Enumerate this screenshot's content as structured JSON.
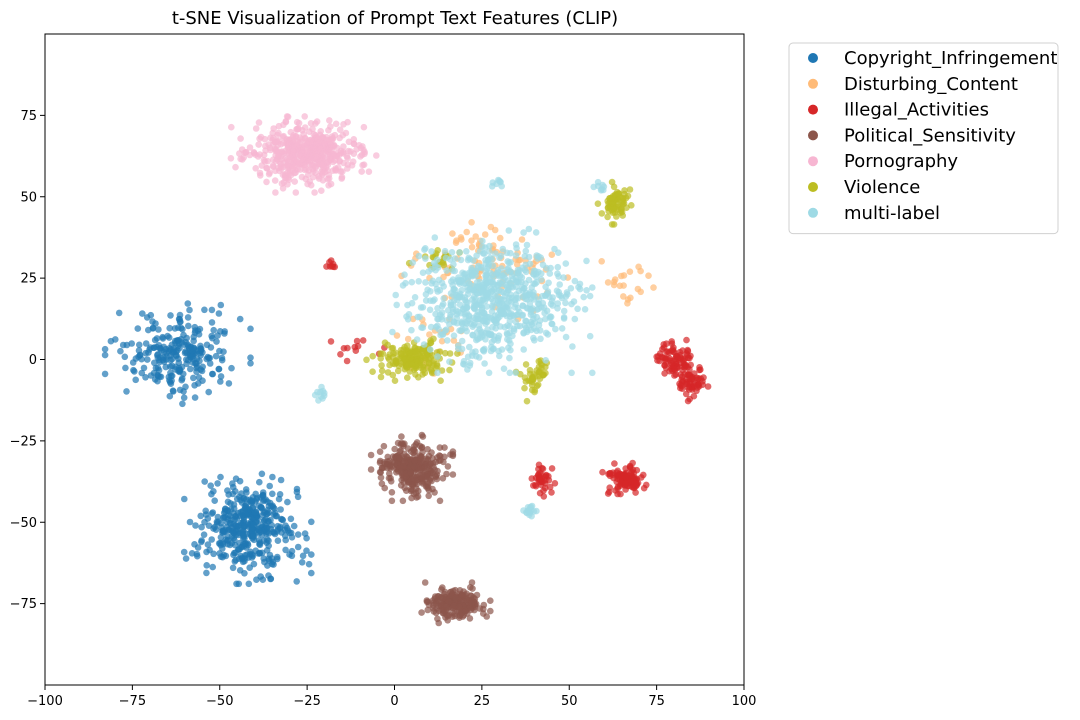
{
  "chart_data": {
    "type": "scatter",
    "title": "t-SNE Visualization of Prompt Text Features (CLIP)",
    "xlabel": "",
    "ylabel": "",
    "xlim": [
      -100,
      100
    ],
    "ylim": [
      -100,
      100
    ],
    "xticks": [
      -100,
      -75,
      -50,
      -25,
      0,
      25,
      50,
      75,
      100
    ],
    "yticks": [
      75,
      50,
      25,
      0,
      -25,
      -50,
      -75
    ],
    "xtick_labels": [
      "−100",
      "−75",
      "−50",
      "−25",
      "0",
      "25",
      "50",
      "75",
      "100"
    ],
    "ytick_labels": [
      "75",
      "50",
      "25",
      "0",
      "−25",
      "−50",
      "−75"
    ],
    "grid": false,
    "legend_position": "outside-upper-right",
    "series": [
      {
        "name": "Copyright_Infringement",
        "color": "#1f77b4",
        "clusters": [
          {
            "center": [
              -62,
              2
            ],
            "spread": [
              16,
              12
            ],
            "count": 260
          },
          {
            "center": [
              -42,
              -52
            ],
            "spread": [
              14,
              13
            ],
            "count": 420
          }
        ]
      },
      {
        "name": "Disturbing_Content",
        "color": "#ffbb78",
        "clusters": [
          {
            "center": [
              28,
              28
            ],
            "spread": [
              20,
              12
            ],
            "count": 90
          },
          {
            "center": [
              65,
              25
            ],
            "spread": [
              7,
              8
            ],
            "count": 20
          },
          {
            "center": [
              12,
              5
            ],
            "spread": [
              12,
              8
            ],
            "count": 25
          }
        ]
      },
      {
        "name": "Illegal_Activities",
        "color": "#d62728",
        "clusters": [
          {
            "center": [
              80,
              0
            ],
            "spread": [
              5,
              5
            ],
            "count": 80
          },
          {
            "center": [
              85,
              -7
            ],
            "spread": [
              4,
              5
            ],
            "count": 60
          },
          {
            "center": [
              66,
              -37
            ],
            "spread": [
              5,
              4
            ],
            "count": 110
          },
          {
            "center": [
              42,
              -37
            ],
            "spread": [
              3,
              4
            ],
            "count": 40
          },
          {
            "center": [
              -18,
              29
            ],
            "spread": [
              2,
              2
            ],
            "count": 8
          },
          {
            "center": [
              -12,
              3
            ],
            "spread": [
              7,
              4
            ],
            "count": 12
          }
        ]
      },
      {
        "name": "Political_Sensitivity",
        "color": "#8c564b",
        "clusters": [
          {
            "center": [
              5,
              -33
            ],
            "spread": [
              9,
              8
            ],
            "count": 300
          },
          {
            "center": [
              17,
              -75
            ],
            "spread": [
              8,
              5
            ],
            "count": 200
          }
        ]
      },
      {
        "name": "Pornography",
        "color": "#f7b6d2",
        "clusters": [
          {
            "center": [
              -26,
              63
            ],
            "spread": [
              16,
              9
            ],
            "count": 480
          }
        ]
      },
      {
        "name": "Violence",
        "color": "#bcbd22",
        "clusters": [
          {
            "center": [
              5,
              0
            ],
            "spread": [
              10,
              5
            ],
            "count": 170
          },
          {
            "center": [
              63,
              48
            ],
            "spread": [
              4,
              5
            ],
            "count": 70
          },
          {
            "center": [
              40,
              -5
            ],
            "spread": [
              4,
              6
            ],
            "count": 45
          },
          {
            "center": [
              12,
              30
            ],
            "spread": [
              6,
              4
            ],
            "count": 20
          }
        ]
      },
      {
        "name": "multi-label",
        "color": "#9edae5",
        "clusters": [
          {
            "center": [
              28,
              18
            ],
            "spread": [
              22,
              17
            ],
            "count": 700
          },
          {
            "center": [
              -21,
              -10
            ],
            "spread": [
              2,
              2
            ],
            "count": 10
          },
          {
            "center": [
              39,
              -46
            ],
            "spread": [
              3,
              2
            ],
            "count": 16
          },
          {
            "center": [
              30,
              54
            ],
            "spread": [
              2,
              2
            ],
            "count": 8
          },
          {
            "center": [
              59,
              53
            ],
            "spread": [
              2,
              2
            ],
            "count": 8
          }
        ]
      }
    ]
  }
}
